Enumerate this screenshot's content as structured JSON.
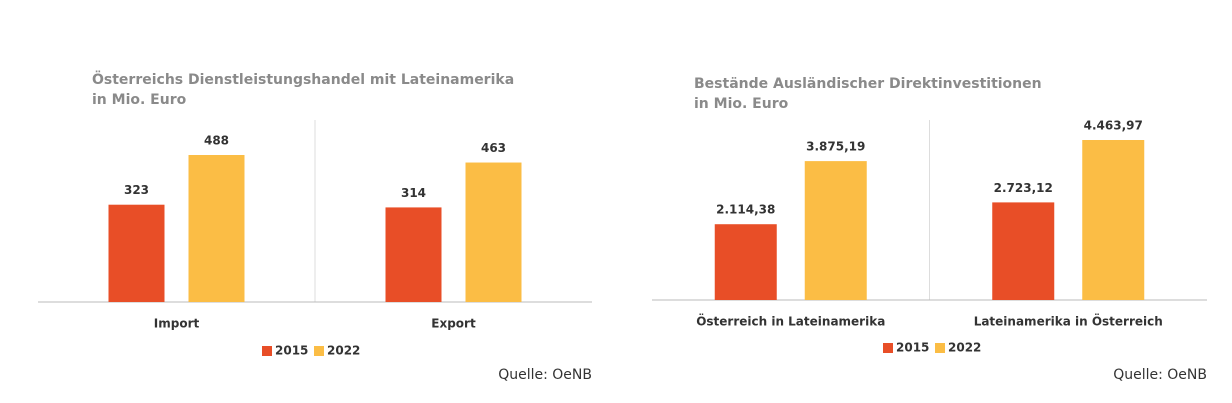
{
  "chart_data": [
    {
      "type": "bar",
      "title": [
        "Österreichs Dienstleistungshandel mit Lateinamerika",
        "in Mio. Euro"
      ],
      "categories": [
        "Import",
        "Export"
      ],
      "series": [
        {
          "name": "2015",
          "color": "#e84e27",
          "values": [
            323,
            314
          ]
        },
        {
          "name": "2022",
          "color": "#fbbd45",
          "values": [
            488,
            463
          ]
        }
      ],
      "source": "Quelle: OeNB"
    },
    {
      "type": "bar",
      "title": [
        "Bestände Ausländischer Direktinvestitionen",
        "in Mio. Euro"
      ],
      "categories": [
        "Österreich in Lateinamerika",
        "Lateinamerika in Österreich"
      ],
      "series": [
        {
          "name": "2015",
          "color": "#e84e27",
          "values": [
            2114.38,
            2723.12
          ],
          "value_labels": [
            "2.114,38",
            "2.723,12"
          ]
        },
        {
          "name": "2022",
          "color": "#fbbd45",
          "values": [
            3875.19,
            4463.97
          ],
          "value_labels": [
            "3.875,19",
            "4.463,97"
          ]
        }
      ],
      "source": "Quelle: OeNB"
    }
  ]
}
